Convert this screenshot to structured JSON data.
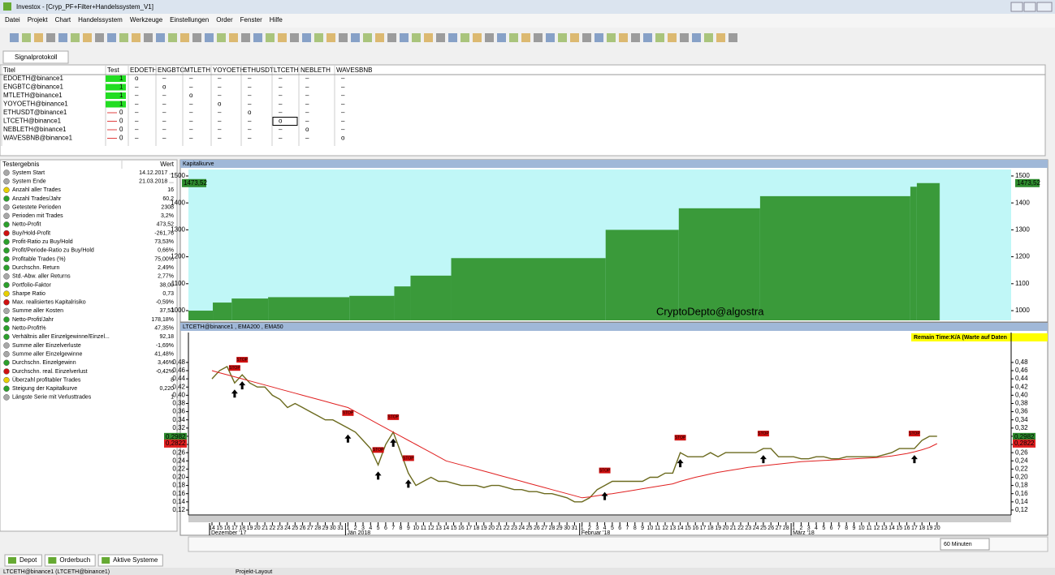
{
  "window": {
    "title": "Investox - [Cryp_PF+Filter+Handelssystem_V1]"
  },
  "menu": [
    "Datei",
    "Projekt",
    "Chart",
    "Handelssystem",
    "Werkzeuge",
    "Einstellungen",
    "Order",
    "Fenster",
    "Hilfe"
  ],
  "tab": "Signalprotokoll",
  "signal_table": {
    "headers": [
      "Titel",
      "Test",
      "EDOETH",
      "ENGBTC",
      "MTLETH",
      "YOYOETH",
      "ETHUSDT",
      "LTCETH",
      "NEBLETH",
      "WAVESBNB"
    ],
    "rows": [
      [
        "EDOETH@binance1",
        "1",
        "o",
        "–",
        "–",
        "–",
        "–",
        "–",
        "–",
        "–"
      ],
      [
        "ENGBTC@binance1",
        "1",
        "–",
        "o",
        "–",
        "–",
        "–",
        "–",
        "–",
        "–"
      ],
      [
        "MTLETH@binance1",
        "1",
        "–",
        "–",
        "o",
        "–",
        "–",
        "–",
        "–",
        "–"
      ],
      [
        "YOYOETH@binance1",
        "1",
        "–",
        "–",
        "–",
        "o",
        "–",
        "–",
        "–",
        "–"
      ],
      [
        "ETHUSDT@binance1",
        "0",
        "–",
        "–",
        "–",
        "–",
        "o",
        "–",
        "–",
        "–"
      ],
      [
        "LTCETH@binance1",
        "0",
        "–",
        "–",
        "–",
        "–",
        "–",
        "o",
        "–",
        "–"
      ],
      [
        "NEBLETH@binance1",
        "0",
        "–",
        "–",
        "–",
        "–",
        "–",
        "–",
        "o",
        "–"
      ],
      [
        "WAVESBNB@binance1",
        "0",
        "–",
        "–",
        "–",
        "–",
        "–",
        "–",
        "–",
        "o"
      ]
    ]
  },
  "results": {
    "headers": [
      "Testergebnis",
      "Wert"
    ],
    "rows": [
      {
        "name": "System Start",
        "value": "14.12.2017 ...",
        "color": "#a8a8a8"
      },
      {
        "name": "System Ende",
        "value": "21.03.2018 ...",
        "color": "#a8a8a8"
      },
      {
        "name": "Anzahl aller Trades",
        "value": "16",
        "color": "#e8d000"
      },
      {
        "name": "Anzahl Trades/Jahr",
        "value": "60,2",
        "color": "#2ca02c"
      },
      {
        "name": "Getestete Perioden",
        "value": "2308",
        "color": "#a8a8a8"
      },
      {
        "name": "Perioden mit Trades",
        "value": "3,2%",
        "color": "#a8a8a8"
      },
      {
        "name": "Netto-Profit",
        "value": "473,52",
        "color": "#2ca02c"
      },
      {
        "name": "Buy/Hold-Profit",
        "value": "-261,76",
        "color": "#d01010"
      },
      {
        "name": "Profit-Ratio zu Buy/Hold",
        "value": "73,53%",
        "color": "#2ca02c"
      },
      {
        "name": "Profit/Periode-Ratio zu Buy/Hold",
        "value": "0,66%",
        "color": "#2ca02c"
      },
      {
        "name": "Profitable Trades (%)",
        "value": "75,00%",
        "color": "#2ca02c"
      },
      {
        "name": "Durchschn. Return",
        "value": "2,49%",
        "color": "#2ca02c"
      },
      {
        "name": "Std.-Abw. aller Returns",
        "value": "2,77%",
        "color": "#a8a8a8"
      },
      {
        "name": "Portfolio-Faktor",
        "value": "38,00",
        "color": "#2ca02c"
      },
      {
        "name": "Sharpe Ratio",
        "value": "0,73",
        "color": "#e8d000"
      },
      {
        "name": "Max. realisiertes Kapitalrisiko",
        "value": "-0,59%",
        "color": "#d01010"
      },
      {
        "name": "Summe aller Kosten",
        "value": "37,53",
        "color": "#a8a8a8"
      },
      {
        "name": "Netto-Profit/Jahr",
        "value": "178,18%",
        "color": "#2ca02c"
      },
      {
        "name": "Netto-Profit%",
        "value": "47,35%",
        "color": "#2ca02c"
      },
      {
        "name": "Verhältnis aller Einzelgewinne/Einzel...",
        "value": "92,18",
        "color": "#2ca02c"
      },
      {
        "name": "Summe aller Einzelverluste",
        "value": "-1,69%",
        "color": "#a8a8a8"
      },
      {
        "name": "Summe aller Einzelgewinne",
        "value": "41,48%",
        "color": "#a8a8a8"
      },
      {
        "name": "Durchschn. Einzelgewinn",
        "value": "3,46%",
        "color": "#2ca02c"
      },
      {
        "name": "Durchschn. real. Einzelverlust",
        "value": "-0,42%",
        "color": "#d01010"
      },
      {
        "name": "Überzahl profitabler Trades",
        "value": "8",
        "color": "#e8d000"
      },
      {
        "name": "Steigung der Kapitalkurve",
        "value": "0,220",
        "color": "#2ca02c"
      },
      {
        "name": "Längste Serie mit Verlusttrades",
        "value": "1",
        "color": "#a8a8a8"
      }
    ]
  },
  "equity_chart": {
    "title": "Kapitalkurve",
    "watermark": "CryptoDepto@algostra",
    "color": "#3a9a3a",
    "xlim": [
      0,
      2530
    ],
    "ylim": [
      964,
      1524
    ],
    "yticks": [
      1000,
      1100,
      1200,
      1300,
      1400,
      1500
    ],
    "steps": [
      {
        "x": 0,
        "value": 1000
      },
      {
        "x": 75,
        "value": 1030
      },
      {
        "x": 133,
        "value": 1045
      },
      {
        "x": 245,
        "value": 1050
      },
      {
        "x": 495,
        "value": 1055
      },
      {
        "x": 633,
        "value": 1090
      },
      {
        "x": 683,
        "value": 1130
      },
      {
        "x": 808,
        "value": 1195
      },
      {
        "x": 1283,
        "value": 1300
      },
      {
        "x": 1508,
        "value": 1380
      },
      {
        "x": 1758,
        "value": 1425
      },
      {
        "x": 2220,
        "value": 1460
      },
      {
        "x": 2240,
        "value": 1473.52
      },
      {
        "x": 2308,
        "value": 1473.52
      }
    ],
    "last": {
      "value": 1473.52,
      "label": "1473,52"
    }
  },
  "price_chart": {
    "title": "LTCETH@binance1 , EMA200 , EMA50",
    "annotation": "Remain Time:K/A (Warte auf Daten",
    "ylim": [
      0.108,
      0.553
    ],
    "yticks": [
      {
        "value": 0.12,
        "label": "0,12"
      },
      {
        "value": 0.14,
        "label": "0,14"
      },
      {
        "value": 0.16,
        "label": "0,16"
      },
      {
        "value": 0.18,
        "label": "0,18"
      },
      {
        "value": 0.2,
        "label": "0,20"
      },
      {
        "value": 0.22,
        "label": "0,22"
      },
      {
        "value": 0.24,
        "label": "0,24"
      },
      {
        "value": 0.26,
        "label": "0,26"
      },
      {
        "value": 0.28,
        "label": "0,28"
      },
      {
        "value": 0.3,
        "label": "0,30"
      },
      {
        "value": 0.32,
        "label": "0,32"
      },
      {
        "value": 0.34,
        "label": "0,34"
      },
      {
        "value": 0.36,
        "label": "0,36"
      },
      {
        "value": 0.38,
        "label": "0,38"
      },
      {
        "value": 0.4,
        "label": "0,40"
      },
      {
        "value": 0.42,
        "label": "0,42"
      },
      {
        "value": 0.44,
        "label": "0,44"
      },
      {
        "value": 0.46,
        "label": "0,46"
      },
      {
        "value": 0.48,
        "label": "0,48"
      }
    ],
    "categories": [
      "14",
      "15",
      "16",
      "17",
      "18",
      "19",
      "20",
      "21",
      "22",
      "23",
      "24",
      "25",
      "26",
      "27",
      "28",
      "29",
      "30",
      "31",
      "1",
      "2",
      "3",
      "4",
      "5",
      "6",
      "7",
      "8",
      "9",
      "10",
      "11",
      "12",
      "13",
      "14",
      "15",
      "16",
      "17",
      "18",
      "19",
      "20",
      "21",
      "22",
      "23",
      "24",
      "25",
      "26",
      "27",
      "28",
      "29",
      "30",
      "31",
      "1",
      "2",
      "3",
      "4",
      "5",
      "6",
      "7",
      "8",
      "9",
      "10",
      "11",
      "12",
      "13",
      "14",
      "15",
      "16",
      "17",
      "18",
      "19",
      "20",
      "21",
      "22",
      "23",
      "24",
      "25",
      "26",
      "27",
      "28",
      "1",
      "2",
      "3",
      "4",
      "5",
      "6",
      "7",
      "8",
      "9",
      "10",
      "11",
      "12",
      "13",
      "14",
      "15",
      "16",
      "17",
      "18",
      "19",
      "20"
    ],
    "months": [
      {
        "label": "Dezember '17",
        "index": 0
      },
      {
        "label": "Jän 2018",
        "index": 18
      },
      {
        "label": "Februar '18",
        "index": 49
      },
      {
        "label": "März '18",
        "index": 77
      }
    ],
    "series": [
      {
        "name": "LTCETH",
        "color": "#6b6a1e",
        "values": [
          0.44,
          0.46,
          0.47,
          0.43,
          0.45,
          0.43,
          0.42,
          0.42,
          0.4,
          0.39,
          0.37,
          0.38,
          0.37,
          0.36,
          0.35,
          0.34,
          0.34,
          0.33,
          0.32,
          0.31,
          0.29,
          0.27,
          0.23,
          0.28,
          0.31,
          0.26,
          0.21,
          0.18,
          0.19,
          0.2,
          0.19,
          0.19,
          0.185,
          0.18,
          0.18,
          0.18,
          0.175,
          0.18,
          0.18,
          0.175,
          0.17,
          0.17,
          0.165,
          0.165,
          0.16,
          0.16,
          0.155,
          0.15,
          0.14,
          0.14,
          0.15,
          0.17,
          0.18,
          0.19,
          0.19,
          0.19,
          0.19,
          0.19,
          0.2,
          0.2,
          0.21,
          0.21,
          0.26,
          0.25,
          0.25,
          0.25,
          0.26,
          0.25,
          0.26,
          0.26,
          0.26,
          0.26,
          0.26,
          0.27,
          0.27,
          0.25,
          0.25,
          0.25,
          0.245,
          0.245,
          0.25,
          0.25,
          0.245,
          0.245,
          0.25,
          0.25,
          0.25,
          0.25,
          0.25,
          0.255,
          0.26,
          0.27,
          0.27,
          0.27,
          0.29,
          0.3,
          0.3
        ]
      },
      {
        "name": "EMA",
        "color": "#e02020",
        "values": [
          0.46,
          0.455,
          0.45,
          0.445,
          0.44,
          0.435,
          0.43,
          0.425,
          0.42,
          0.415,
          0.41,
          0.405,
          0.4,
          0.395,
          0.39,
          0.385,
          0.38,
          0.375,
          0.37,
          0.36,
          0.35,
          0.34,
          0.33,
          0.32,
          0.31,
          0.3,
          0.29,
          0.28,
          0.27,
          0.26,
          0.25,
          0.24,
          0.235,
          0.23,
          0.225,
          0.22,
          0.215,
          0.21,
          0.205,
          0.2,
          0.195,
          0.19,
          0.185,
          0.18,
          0.175,
          0.17,
          0.165,
          0.16,
          0.155,
          0.15,
          0.152,
          0.155,
          0.158,
          0.16,
          0.163,
          0.166,
          0.169,
          0.172,
          0.175,
          0.178,
          0.181,
          0.184,
          0.19,
          0.195,
          0.2,
          0.204,
          0.208,
          0.212,
          0.215,
          0.218,
          0.221,
          0.224,
          0.226,
          0.228,
          0.23,
          0.232,
          0.234,
          0.236,
          0.238,
          0.239,
          0.24,
          0.241,
          0.242,
          0.243,
          0.244,
          0.245,
          0.246,
          0.247,
          0.248,
          0.25,
          0.252,
          0.255,
          0.258,
          0.262,
          0.267,
          0.273,
          0.282
        ]
      }
    ],
    "signals": [
      {
        "index": 3,
        "label": "STOP"
      },
      {
        "index": 4,
        "label": "STOP"
      },
      {
        "index": 18,
        "label": "STOP"
      },
      {
        "index": 22,
        "label": "STOP"
      },
      {
        "index": 24,
        "label": "STOP"
      },
      {
        "index": 26,
        "label": "STOP"
      },
      {
        "index": 52,
        "label": "STOP"
      },
      {
        "index": 62,
        "label": "STOP"
      },
      {
        "index": 73,
        "label": "STOP"
      },
      {
        "index": 93,
        "label": "STOP"
      }
    ],
    "last_labels": [
      {
        "value": 0.2982,
        "label": "0,2982",
        "color": "#2e8b2e"
      },
      {
        "value": 0.2822,
        "label": "0,2822",
        "color": "#e02020"
      }
    ]
  },
  "timeframe": "60 Minuten",
  "bottom_tabs": [
    "Depot",
    "Orderbuch",
    "Aktive Systeme"
  ],
  "status": [
    "LTCETH@binance1 (LTCETH@binance1)",
    "Projekt-Layout"
  ]
}
